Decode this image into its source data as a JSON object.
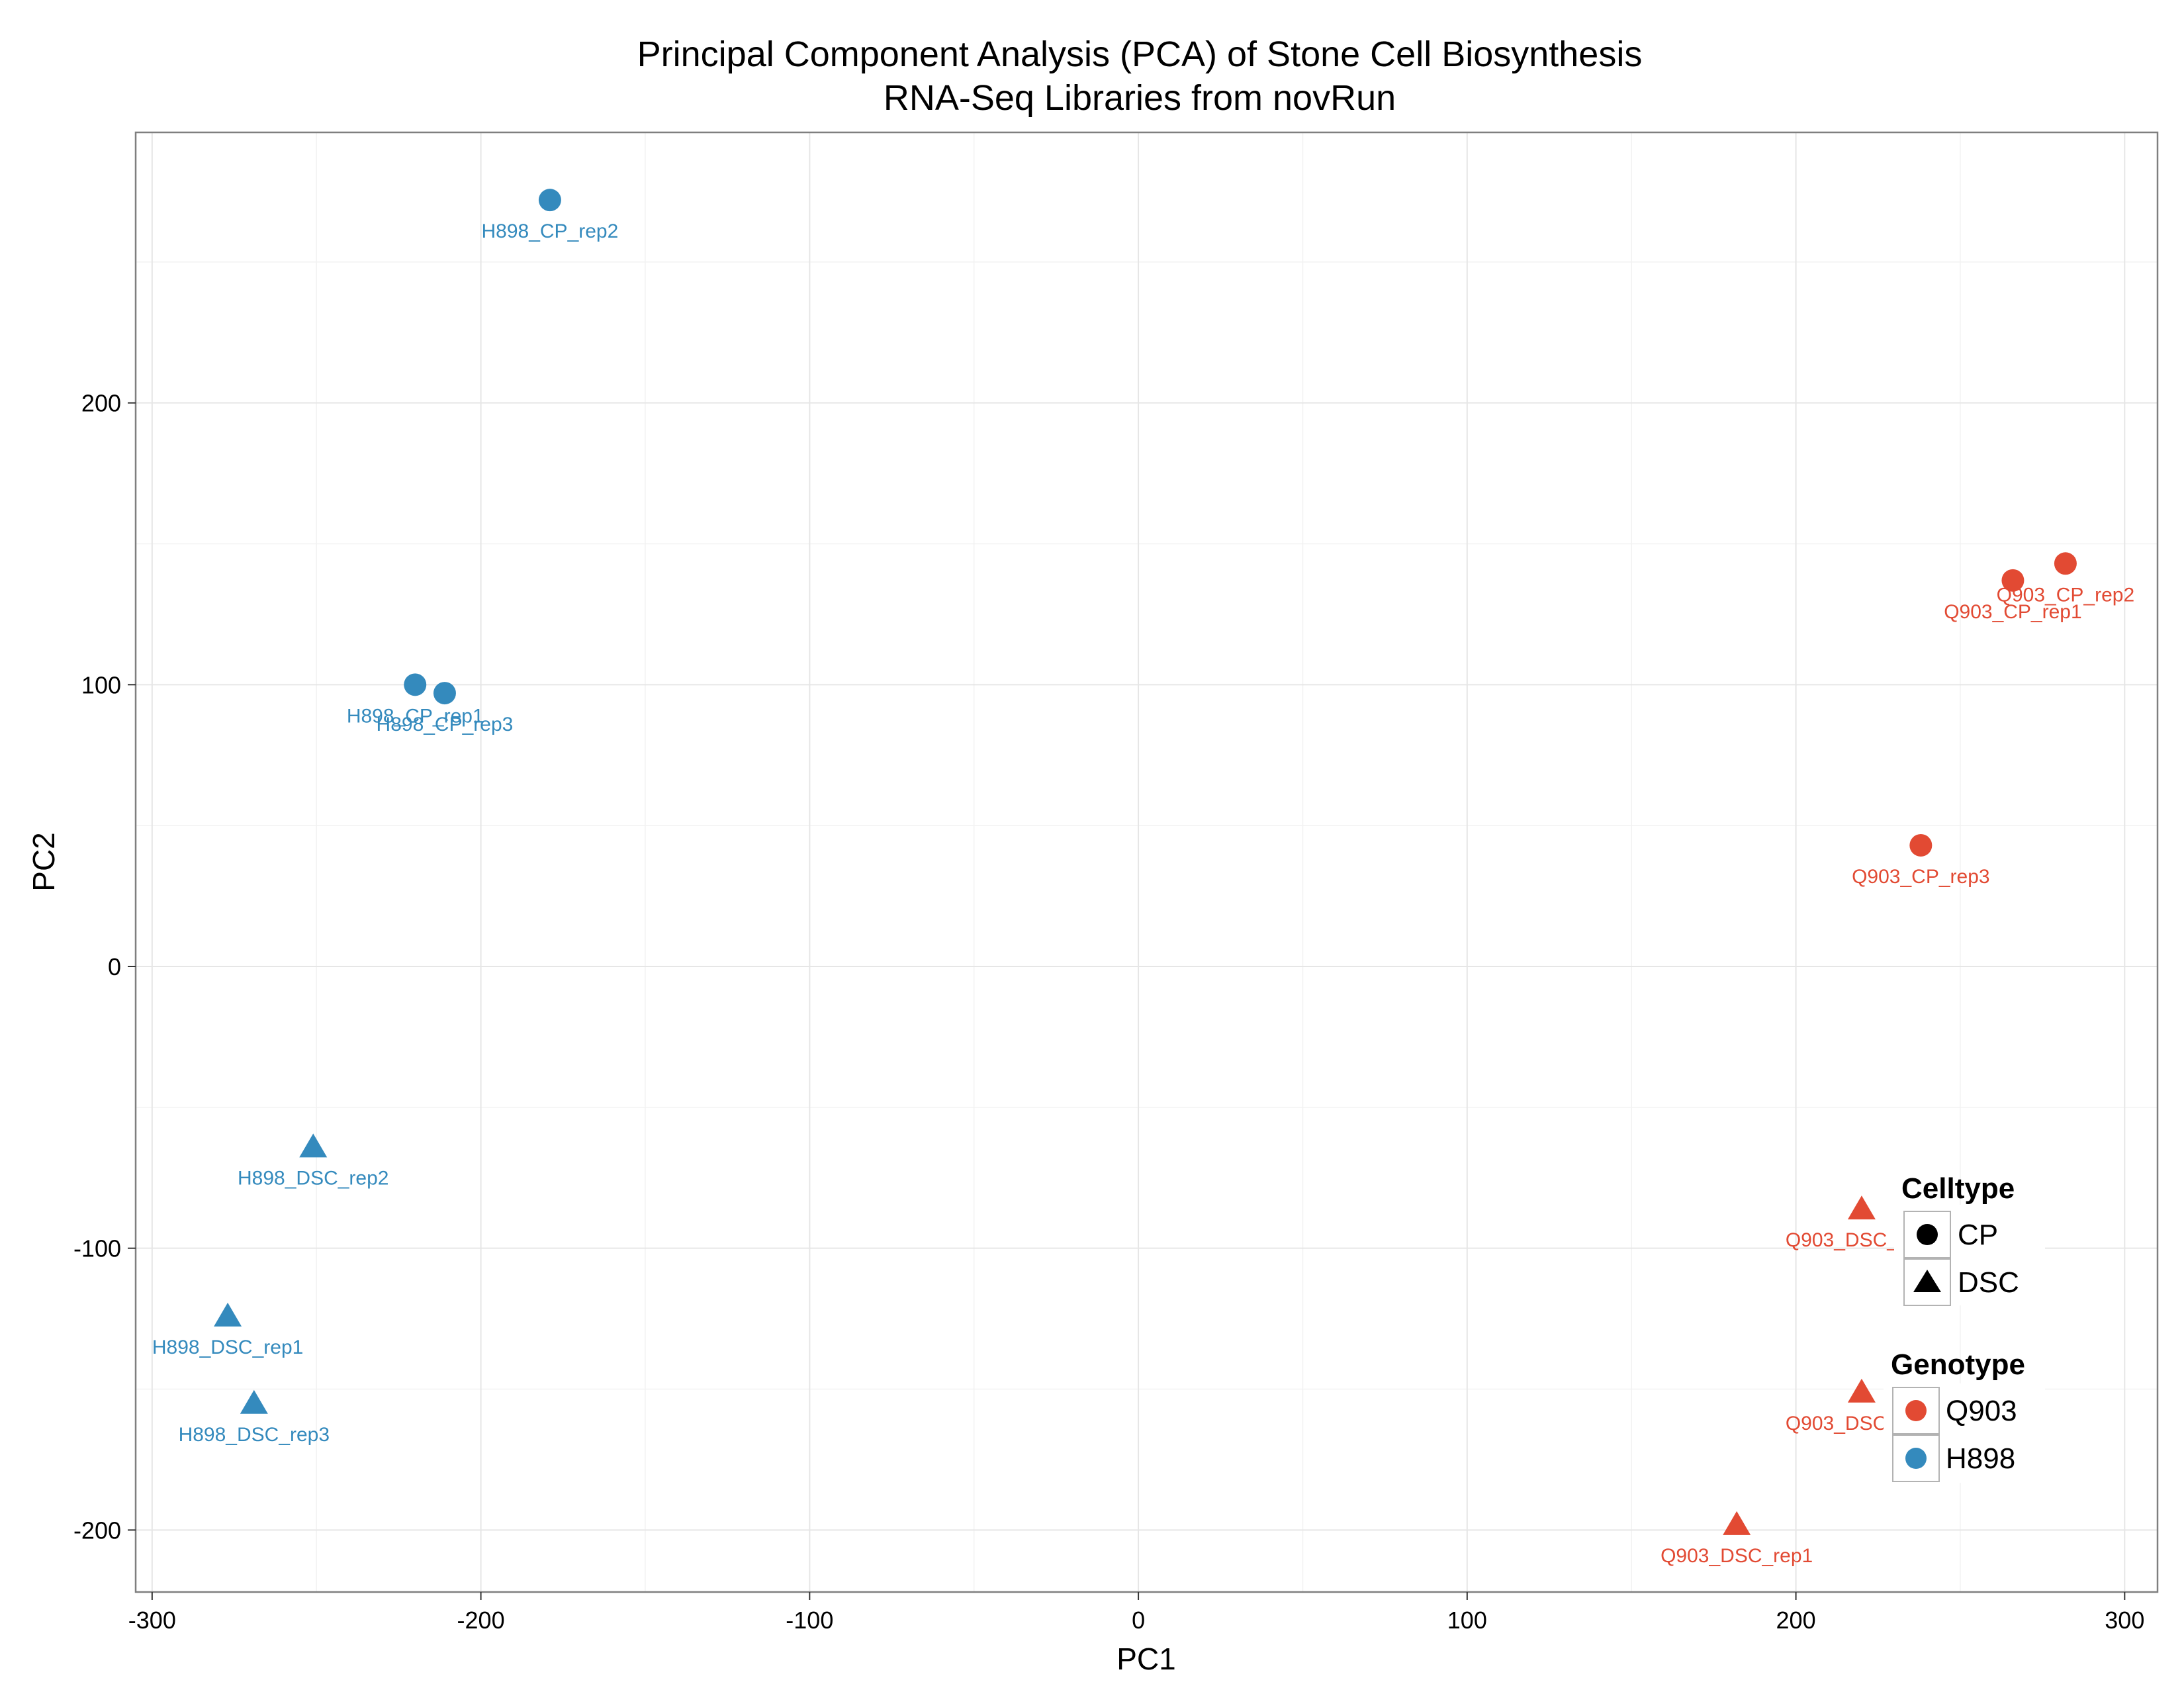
{
  "chart_data": {
    "type": "scatter",
    "title_lines": [
      "Principal Component Analysis (PCA) of Stone Cell Biosynthesis",
      "RNA-Seq Libraries from novRun"
    ],
    "xlabel": "PC1",
    "ylabel": "PC2",
    "xlim": [
      -305,
      310
    ],
    "ylim": [
      -222,
      296
    ],
    "xticks": [
      -300,
      -200,
      -100,
      0,
      100,
      200,
      300
    ],
    "yticks": [
      -200,
      -100,
      0,
      100,
      200
    ],
    "grid": true,
    "colors": {
      "Q903": "#e24a33",
      "H898": "#348abd"
    },
    "legend_position": "bottom-right",
    "legends": [
      {
        "title": "Celltype",
        "entries": [
          {
            "label": "CP",
            "shape": "circle"
          },
          {
            "label": "DSC",
            "shape": "triangle"
          }
        ]
      },
      {
        "title": "Genotype",
        "entries": [
          {
            "label": "Q903",
            "shape": "circle",
            "color": "#e24a33"
          },
          {
            "label": "H898",
            "shape": "circle",
            "color": "#348abd"
          }
        ]
      }
    ],
    "points": [
      {
        "label": "H898_CP_rep2",
        "x": -179,
        "y": 272,
        "genotype": "H898",
        "celltype": "CP"
      },
      {
        "label": "H898_CP_rep1",
        "x": -220,
        "y": 100,
        "genotype": "H898",
        "celltype": "CP"
      },
      {
        "label": "H898_CP_rep3",
        "x": -211,
        "y": 97,
        "genotype": "H898",
        "celltype": "CP"
      },
      {
        "label": "H898_DSC_rep2",
        "x": -251,
        "y": -64,
        "genotype": "H898",
        "celltype": "DSC"
      },
      {
        "label": "H898_DSC_rep1",
        "x": -277,
        "y": -124,
        "genotype": "H898",
        "celltype": "DSC"
      },
      {
        "label": "H898_DSC_rep3",
        "x": -269,
        "y": -155,
        "genotype": "H898",
        "celltype": "DSC"
      },
      {
        "label": "Q903_CP_rep2",
        "x": 282,
        "y": 143,
        "genotype": "Q903",
        "celltype": "CP"
      },
      {
        "label": "Q903_CP_rep1",
        "x": 266,
        "y": 137,
        "genotype": "Q903",
        "celltype": "CP"
      },
      {
        "label": "Q903_CP_rep3",
        "x": 238,
        "y": 43,
        "genotype": "Q903",
        "celltype": "CP"
      },
      {
        "label": "Q903_DSC_rep2",
        "x": 220,
        "y": -86,
        "genotype": "Q903",
        "celltype": "DSC"
      },
      {
        "label": "Q903_DSC_rep3",
        "x": 220,
        "y": -151,
        "genotype": "Q903",
        "celltype": "DSC"
      },
      {
        "label": "Q903_DSC_rep1",
        "x": 182,
        "y": -198,
        "genotype": "Q903",
        "celltype": "DSC"
      }
    ]
  }
}
